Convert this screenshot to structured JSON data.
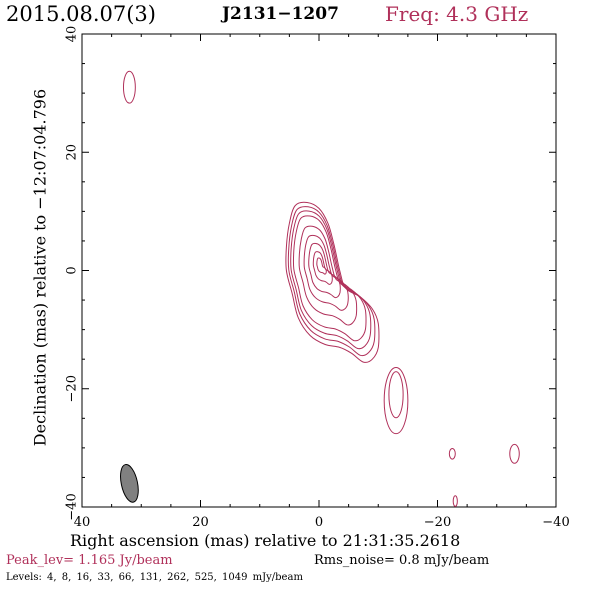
{
  "header": {
    "date": "2015.08.07(3)",
    "source": "J2131−1207",
    "frequency": "Freq: 4.3 GHz"
  },
  "footer": {
    "peak": "Peak_lev=  1.165 Jy/beam",
    "rms": "Rms_noise=  0.8 mJy/beam",
    "levels": "Levels:  4,  8,  16,  33,  66,  131,  262,  525,  1049 mJy/beam"
  },
  "colors": {
    "contour": "#b0305a",
    "beam": "#808080",
    "text": "#000000"
  },
  "chart_data": {
    "type": "contour",
    "xlabel": "Right ascension (mas) relative to 21:31:35.2618",
    "ylabel": "Declination (mas) relative to −12:07:04.796",
    "xlim": [
      40,
      -40
    ],
    "ylim": [
      -40,
      40
    ],
    "x_ticks": [
      40,
      20,
      0,
      -20,
      -40
    ],
    "y_ticks": [
      -40,
      -20,
      0,
      20,
      40
    ],
    "x_tick_labels": [
      "40",
      "20",
      "0",
      "−20",
      "−40"
    ],
    "y_tick_labels": [
      "−40",
      "−20",
      "0",
      "20",
      "40"
    ],
    "contour_levels_mJy": [
      4,
      8,
      16,
      33,
      66,
      131,
      262,
      525,
      1049
    ],
    "peak_Jy_per_beam": 1.165,
    "rms_mJy_per_beam": 0.8,
    "core": {
      "x": 0,
      "y": 0
    },
    "jet_direction": "south-west",
    "features": [
      {
        "x": 32,
        "y": 31
      },
      {
        "x": -13,
        "y": -22
      },
      {
        "x": -22.5,
        "y": -31
      },
      {
        "x": -33,
        "y": -31
      },
      {
        "x": -23,
        "y": -39
      }
    ],
    "beam": {
      "x": 32,
      "y": -36,
      "major_mas": 6.5,
      "minor_mas": 2.6,
      "pa_deg": -12
    }
  }
}
